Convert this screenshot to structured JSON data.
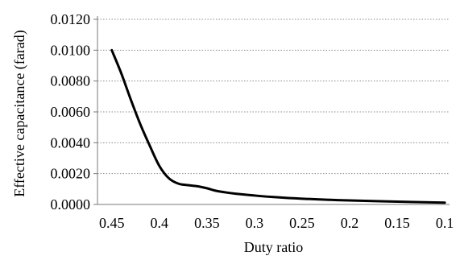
{
  "chart_data": {
    "type": "line",
    "xlabel": "Duty ratio",
    "ylabel": "Effective capacitance (farad)",
    "x_reversed": true,
    "xlim": [
      0.465,
      0.095
    ],
    "ylim": [
      0,
      0.012
    ],
    "x_ticks": [
      "0.45",
      "0.4",
      "0.35",
      "0.3",
      "0.25",
      "0.2",
      "0.15",
      "0.1"
    ],
    "y_ticks": [
      "0.0000",
      "0.0020",
      "0.0040",
      "0.0060",
      "0.0080",
      "0.0100",
      "0.0120"
    ],
    "grid": "horizontal-dotted",
    "series": [
      {
        "color": "#000000",
        "x": [
          0.45,
          0.44,
          0.43,
          0.42,
          0.41,
          0.4,
          0.39,
          0.38,
          0.37,
          0.36,
          0.35,
          0.34,
          0.33,
          0.32,
          0.3,
          0.28,
          0.25,
          0.22,
          0.2,
          0.15,
          0.1
        ],
        "y": [
          0.01,
          0.0085,
          0.0068,
          0.0052,
          0.0038,
          0.0025,
          0.0017,
          0.00135,
          0.00125,
          0.00118,
          0.00105,
          0.00088,
          0.00078,
          0.0007,
          0.00058,
          0.00048,
          0.00037,
          0.0003,
          0.00026,
          0.00018,
          0.00012
        ]
      }
    ]
  }
}
